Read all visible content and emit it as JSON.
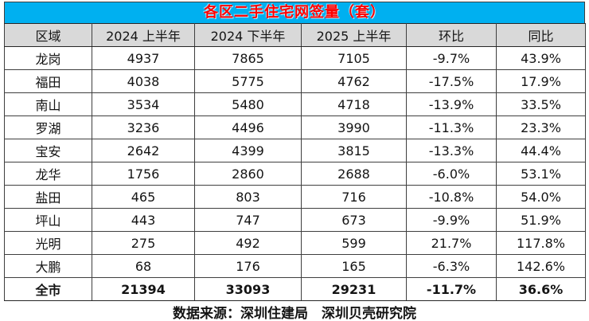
{
  "colors": {
    "title_bg": "#00B0F0",
    "title_text": "#FF0000",
    "header_bg": "#D9D9D9",
    "grid_line": "#3f3f3f",
    "body_bg": "#ffffff"
  },
  "chart_data": {
    "type": "table",
    "title": "各区二手住宅网签量（套）",
    "columns": [
      "区域",
      "2024 上半年",
      "2024 下半年",
      "2025 上半年",
      "环比",
      "同比"
    ],
    "rows": [
      {
        "cells": [
          "龙岗",
          "4937",
          "7865",
          "7105",
          "-9.7%",
          "43.9%"
        ],
        "bold": false
      },
      {
        "cells": [
          "福田",
          "4038",
          "5775",
          "4762",
          "-17.5%",
          "17.9%"
        ],
        "bold": false
      },
      {
        "cells": [
          "南山",
          "3534",
          "5480",
          "4718",
          "-13.9%",
          "33.5%"
        ],
        "bold": false
      },
      {
        "cells": [
          "罗湖",
          "3236",
          "4496",
          "3990",
          "-11.3%",
          "23.3%"
        ],
        "bold": false
      },
      {
        "cells": [
          "宝安",
          "2642",
          "4399",
          "3815",
          "-13.3%",
          "44.4%"
        ],
        "bold": false
      },
      {
        "cells": [
          "龙华",
          "1756",
          "2860",
          "2688",
          "-6.0%",
          "53.1%"
        ],
        "bold": false
      },
      {
        "cells": [
          "盐田",
          "465",
          "803",
          "716",
          "-10.8%",
          "54.0%"
        ],
        "bold": false
      },
      {
        "cells": [
          "坪山",
          "443",
          "747",
          "673",
          "-9.9%",
          "51.9%"
        ],
        "bold": false
      },
      {
        "cells": [
          "光明",
          "275",
          "492",
          "599",
          "21.7%",
          "117.8%"
        ],
        "bold": false
      },
      {
        "cells": [
          "大鹏",
          "68",
          "176",
          "165",
          "-6.3%",
          "142.6%"
        ],
        "bold": false
      },
      {
        "cells": [
          "全市",
          "21394",
          "33093",
          "29231",
          "-11.7%",
          "36.6%"
        ],
        "bold": true
      }
    ],
    "source": "数据来源：深圳住建局　深圳贝壳研究院"
  }
}
